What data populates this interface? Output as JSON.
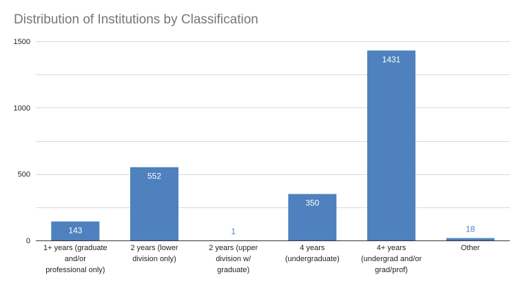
{
  "chart_data": {
    "type": "bar",
    "title": "Distribution of Institutions by Classification",
    "xlabel": "",
    "ylabel": "",
    "ylim": [
      0,
      1500
    ],
    "yticks": [
      0,
      500,
      1000,
      1500
    ],
    "grid": true,
    "legend": "none",
    "bar_color": "#4e81bd",
    "grid_color": "#d9d9d9",
    "categories": [
      [
        "1+ years (graduate",
        "and/or",
        "professional only)"
      ],
      [
        "2 years (lower",
        "division only)"
      ],
      [
        "2 years (upper",
        "division w/",
        "graduate)"
      ],
      [
        "4 years",
        "(undergraduate)"
      ],
      [
        "4+ years",
        "(undergrad and/or",
        "grad/prof)"
      ],
      [
        "Other"
      ]
    ],
    "values": [
      143,
      552,
      1,
      350,
      1431,
      18
    ],
    "data_labels": [
      "143",
      "552",
      "1",
      "350",
      "1431",
      "18"
    ]
  }
}
